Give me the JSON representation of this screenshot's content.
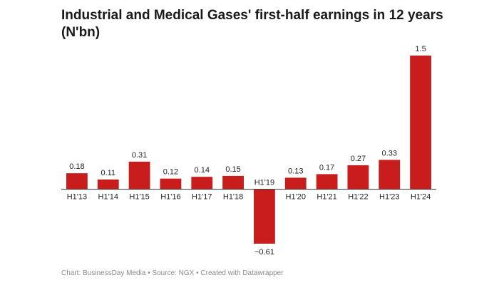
{
  "header": {
    "title": "Industrial and Medical Gases' first-half earnings in 12 years (N'bn)"
  },
  "footer": {
    "credit": "Chart: BusinessDay Media • Source: NGX • Created with Datawrapper"
  },
  "colors": {
    "bar": "#c91c1c",
    "axis": "#333333"
  },
  "chart_data": {
    "type": "bar",
    "title": "Industrial and Medical Gases' first-half earnings in 12 years (N'bn)",
    "xlabel": "",
    "ylabel": "",
    "ylim": [
      -0.61,
      1.5
    ],
    "grid": false,
    "categories": [
      "H1'13",
      "H1'14",
      "H1'15",
      "H1'16",
      "H1'17",
      "H1'18",
      "H1'19",
      "H1'20",
      "H1'21",
      "H1'22",
      "H1'23",
      "H1'24"
    ],
    "values": [
      0.18,
      0.11,
      0.31,
      0.12,
      0.14,
      0.15,
      -0.61,
      0.13,
      0.17,
      0.27,
      0.33,
      1.5
    ],
    "value_labels": [
      "0.18",
      "0.11",
      "0.31",
      "0.12",
      "0.14",
      "0.15",
      "−0.61",
      "0.13",
      "0.17",
      "0.27",
      "0.33",
      "1.5"
    ]
  }
}
